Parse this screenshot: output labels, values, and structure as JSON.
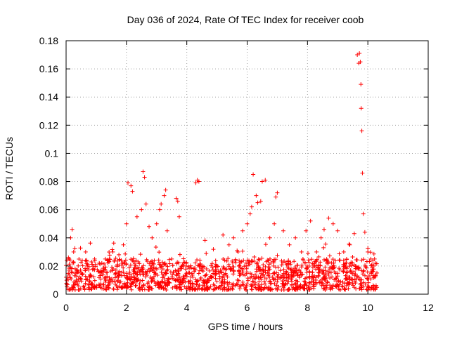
{
  "chart_data": {
    "type": "scatter",
    "title": "Day 036 of 2024, Rate Of TEC Index for receiver coob",
    "xlabel": "GPS time / hours",
    "ylabel": "ROTI / TECUs",
    "xlim": [
      0,
      12
    ],
    "ylim": [
      0,
      0.18
    ],
    "xticks": [
      0,
      2,
      4,
      6,
      8,
      10,
      12
    ],
    "xtick_labels": [
      "0",
      "2",
      "4",
      "6",
      "8",
      "10",
      "12"
    ],
    "yticks": [
      0,
      0.02,
      0.04,
      0.06,
      0.08,
      0.1,
      0.12,
      0.14,
      0.16,
      0.18
    ],
    "ytick_labels": [
      "0",
      "0.02",
      "0.04",
      "0.06",
      "0.08",
      "0.1",
      "0.12",
      "0.14",
      "0.16",
      "0.18"
    ],
    "grid": true,
    "marker": "+",
    "series": [
      {
        "name": "ROTI",
        "color": "#ff0000",
        "x": [
          0.05,
          0.1,
          0.15,
          0.2,
          0.25,
          0.3,
          0.35,
          0.5,
          0.7,
          0.9,
          1.1,
          1.3,
          1.55,
          1.75,
          1.9,
          2.0,
          2.05,
          2.15,
          2.2,
          2.35,
          2.5,
          2.55,
          2.6,
          2.65,
          2.75,
          2.85,
          3.0,
          3.1,
          3.15,
          3.25,
          3.3,
          3.35,
          3.5,
          3.65,
          3.7,
          3.75,
          3.9,
          4.0,
          4.2,
          4.3,
          4.35,
          4.4,
          4.6,
          4.8,
          5.0,
          5.2,
          5.4,
          5.55,
          5.7,
          5.85,
          6.0,
          6.1,
          6.15,
          6.2,
          6.3,
          6.35,
          6.45,
          6.5,
          6.6,
          6.75,
          6.9,
          6.95,
          7.0,
          7.2,
          7.4,
          7.6,
          7.8,
          7.95,
          8.1,
          8.3,
          8.45,
          8.55,
          8.7,
          8.85,
          9.0,
          9.2,
          9.4,
          9.55,
          9.65,
          9.7,
          9.72,
          9.75,
          9.77,
          9.78,
          9.8,
          9.82,
          9.85,
          9.9,
          10.0,
          10.1,
          10.2,
          10.3
        ],
        "y": [
          0.012,
          0.025,
          0.04,
          0.046,
          0.03,
          0.018,
          0.01,
          0.015,
          0.02,
          0.018,
          0.022,
          0.025,
          0.03,
          0.028,
          0.035,
          0.05,
          0.079,
          0.077,
          0.073,
          0.055,
          0.06,
          0.087,
          0.083,
          0.064,
          0.048,
          0.04,
          0.05,
          0.06,
          0.064,
          0.07,
          0.074,
          0.045,
          0.025,
          0.068,
          0.066,
          0.055,
          0.02,
          0.015,
          0.012,
          0.079,
          0.081,
          0.08,
          0.013,
          0.012,
          0.02,
          0.042,
          0.035,
          0.04,
          0.03,
          0.045,
          0.05,
          0.057,
          0.062,
          0.085,
          0.07,
          0.065,
          0.066,
          0.08,
          0.081,
          0.04,
          0.05,
          0.069,
          0.072,
          0.045,
          0.035,
          0.04,
          0.03,
          0.045,
          0.052,
          0.03,
          0.04,
          0.046,
          0.054,
          0.05,
          0.045,
          0.03,
          0.035,
          0.043,
          0.17,
          0.164,
          0.171,
          0.165,
          0.149,
          0.132,
          0.116,
          0.086,
          0.057,
          0.044,
          0.03,
          0.025,
          0.02,
          0.015
        ],
        "band": {
          "description": "dense baseline of points from x 0 to 10.3",
          "x_range": [
            0,
            10.3
          ],
          "y_range": [
            0.003,
            0.025
          ]
        }
      }
    ]
  }
}
